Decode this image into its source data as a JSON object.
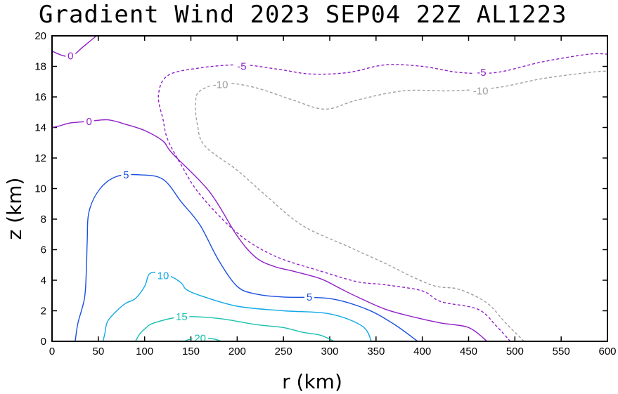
{
  "chart_data": {
    "type": "contour",
    "title": "Gradient Wind 2023 SEP04 22Z  AL1223",
    "xlabel": "r (km)",
    "ylabel": "z (km)",
    "xlim": [
      0,
      600
    ],
    "ylim": [
      0,
      20
    ],
    "xticks": [
      0,
      50,
      100,
      150,
      200,
      250,
      300,
      350,
      400,
      450,
      500,
      550,
      600
    ],
    "yticks": [
      0,
      2,
      4,
      6,
      8,
      10,
      12,
      14,
      16,
      18,
      20
    ],
    "contours": [
      {
        "level": -10,
        "label": "-10",
        "color": "#a0a0a0",
        "dashed": true,
        "label_points": [
          [
            182,
            16.8
          ],
          [
            463,
            16.4
          ]
        ],
        "points": [
          [
            510,
            0
          ],
          [
            490,
            1.2
          ],
          [
            470,
            2.5
          ],
          [
            440,
            3.4
          ],
          [
            415,
            3.6
          ],
          [
            390,
            4.2
          ],
          [
            360,
            5.1
          ],
          [
            320,
            6.2
          ],
          [
            270,
            7.6
          ],
          [
            230,
            9.6
          ],
          [
            200,
            11.2
          ],
          [
            165,
            12.8
          ],
          [
            157,
            14.2
          ],
          [
            155,
            15.6
          ],
          [
            160,
            16.4
          ],
          [
            185,
            16.9
          ],
          [
            220,
            16.6
          ],
          [
            260,
            15.8
          ],
          [
            295,
            15.2
          ],
          [
            330,
            15.8
          ],
          [
            380,
            16.4
          ],
          [
            430,
            16.4
          ],
          [
            480,
            16.6
          ],
          [
            530,
            17.2
          ],
          [
            580,
            17.6
          ],
          [
            600,
            17.7
          ]
        ]
      },
      {
        "level": -5,
        "label": "-5",
        "color": "#9020c8",
        "dashed": true,
        "label_points": [
          [
            205,
            18.0
          ],
          [
            464,
            17.6
          ]
        ],
        "points": [
          [
            495,
            0
          ],
          [
            480,
            1.0
          ],
          [
            460,
            2.1
          ],
          [
            420,
            2.6
          ],
          [
            400,
            3.3
          ],
          [
            360,
            3.7
          ],
          [
            330,
            3.9
          ],
          [
            290,
            4.6
          ],
          [
            240,
            5.6
          ],
          [
            200,
            7.1
          ],
          [
            160,
            9.6
          ],
          [
            140,
            11.5
          ],
          [
            125,
            13.2
          ],
          [
            120,
            14.5
          ],
          [
            115,
            16.1
          ],
          [
            125,
            17.4
          ],
          [
            160,
            17.9
          ],
          [
            205,
            18.1
          ],
          [
            245,
            17.8
          ],
          [
            280,
            17.5
          ],
          [
            320,
            17.6
          ],
          [
            360,
            18.1
          ],
          [
            400,
            18.0
          ],
          [
            440,
            17.6
          ],
          [
            480,
            17.6
          ],
          [
            530,
            18.3
          ],
          [
            580,
            18.8
          ],
          [
            600,
            18.8
          ]
        ]
      },
      {
        "level": 0,
        "label": "0",
        "color": "#9020c8",
        "dashed": false,
        "label_points": [
          [
            20,
            18.7
          ],
          [
            40,
            14.4
          ]
        ],
        "points": [
          [
            470,
            0
          ],
          [
            450,
            0.9
          ],
          [
            420,
            1.2
          ],
          [
            390,
            1.6
          ],
          [
            360,
            2.1
          ],
          [
            330,
            2.9
          ],
          [
            310,
            3.5
          ],
          [
            290,
            4.1
          ],
          [
            260,
            4.6
          ],
          [
            240,
            4.9
          ],
          [
            220,
            5.5
          ],
          [
            200,
            6.9
          ],
          [
            170,
            9.8
          ],
          [
            130,
            12.3
          ],
          [
            120,
            13.1
          ],
          [
            100,
            13.8
          ],
          [
            80,
            14.2
          ],
          [
            60,
            14.5
          ],
          [
            40,
            14.4
          ],
          [
            20,
            14.3
          ],
          [
            8,
            14.1
          ],
          [
            0,
            14.0
          ]
        ],
        "extra_paths": [
          [
            [
              0,
              19.0
            ],
            [
              12,
              18.7
            ],
            [
              22,
              18.7
            ],
            [
              32,
              19.2
            ],
            [
              42,
              19.7
            ],
            [
              48,
              20
            ]
          ]
        ]
      },
      {
        "level": 5,
        "label": "5",
        "color": "#1a50e0",
        "dashed": false,
        "label_points": [
          [
            80,
            10.9
          ],
          [
            278,
            2.9
          ]
        ],
        "points": [
          [
            395,
            0
          ],
          [
            370,
            1.1
          ],
          [
            340,
            2.1
          ],
          [
            300,
            2.8
          ],
          [
            250,
            2.9
          ],
          [
            220,
            3.1
          ],
          [
            200,
            3.6
          ],
          [
            180,
            5.3
          ],
          [
            160,
            7.6
          ],
          [
            140,
            9.1
          ],
          [
            120,
            10.6
          ],
          [
            95,
            10.9
          ],
          [
            70,
            10.8
          ],
          [
            52,
            10.0
          ],
          [
            40,
            8.5
          ],
          [
            38,
            6.5
          ],
          [
            37,
            4.5
          ],
          [
            35,
            2.8
          ],
          [
            28,
            1.2
          ],
          [
            25,
            0
          ]
        ]
      },
      {
        "level": 10,
        "label": "10",
        "color": "#10a8e8",
        "dashed": false,
        "label_points": [
          [
            120,
            4.3
          ]
        ],
        "points": [
          [
            345,
            0
          ],
          [
            335,
            1.0
          ],
          [
            300,
            1.8
          ],
          [
            250,
            2.0
          ],
          [
            200,
            2.3
          ],
          [
            160,
            3.0
          ],
          [
            145,
            3.4
          ],
          [
            140,
            3.8
          ],
          [
            130,
            4.2
          ],
          [
            115,
            4.5
          ],
          [
            105,
            4.4
          ],
          [
            100,
            3.6
          ],
          [
            90,
            2.8
          ],
          [
            80,
            2.5
          ],
          [
            70,
            2.0
          ],
          [
            60,
            1.3
          ],
          [
            57,
            0.5
          ],
          [
            55,
            0
          ]
        ]
      },
      {
        "level": 15,
        "label": "15",
        "color": "#18c0b0",
        "dashed": false,
        "label_points": [
          [
            140,
            1.6
          ]
        ],
        "points": [
          [
            305,
            0
          ],
          [
            290,
            0.4
          ],
          [
            270,
            0.6
          ],
          [
            250,
            0.9
          ],
          [
            220,
            1.1
          ],
          [
            180,
            1.5
          ],
          [
            140,
            1.6
          ],
          [
            110,
            1.2
          ],
          [
            100,
            0.8
          ],
          [
            95,
            0.5
          ],
          [
            90,
            0
          ]
        ]
      },
      {
        "level": 20,
        "label": "20",
        "color": "#18c0b0",
        "dashed": false,
        "label_points": [
          [
            160,
            0.2
          ]
        ],
        "points": [
          [
            183,
            0
          ],
          [
            175,
            0.15
          ],
          [
            165,
            0.2
          ],
          [
            150,
            0.15
          ],
          [
            143,
            0
          ]
        ]
      }
    ]
  }
}
